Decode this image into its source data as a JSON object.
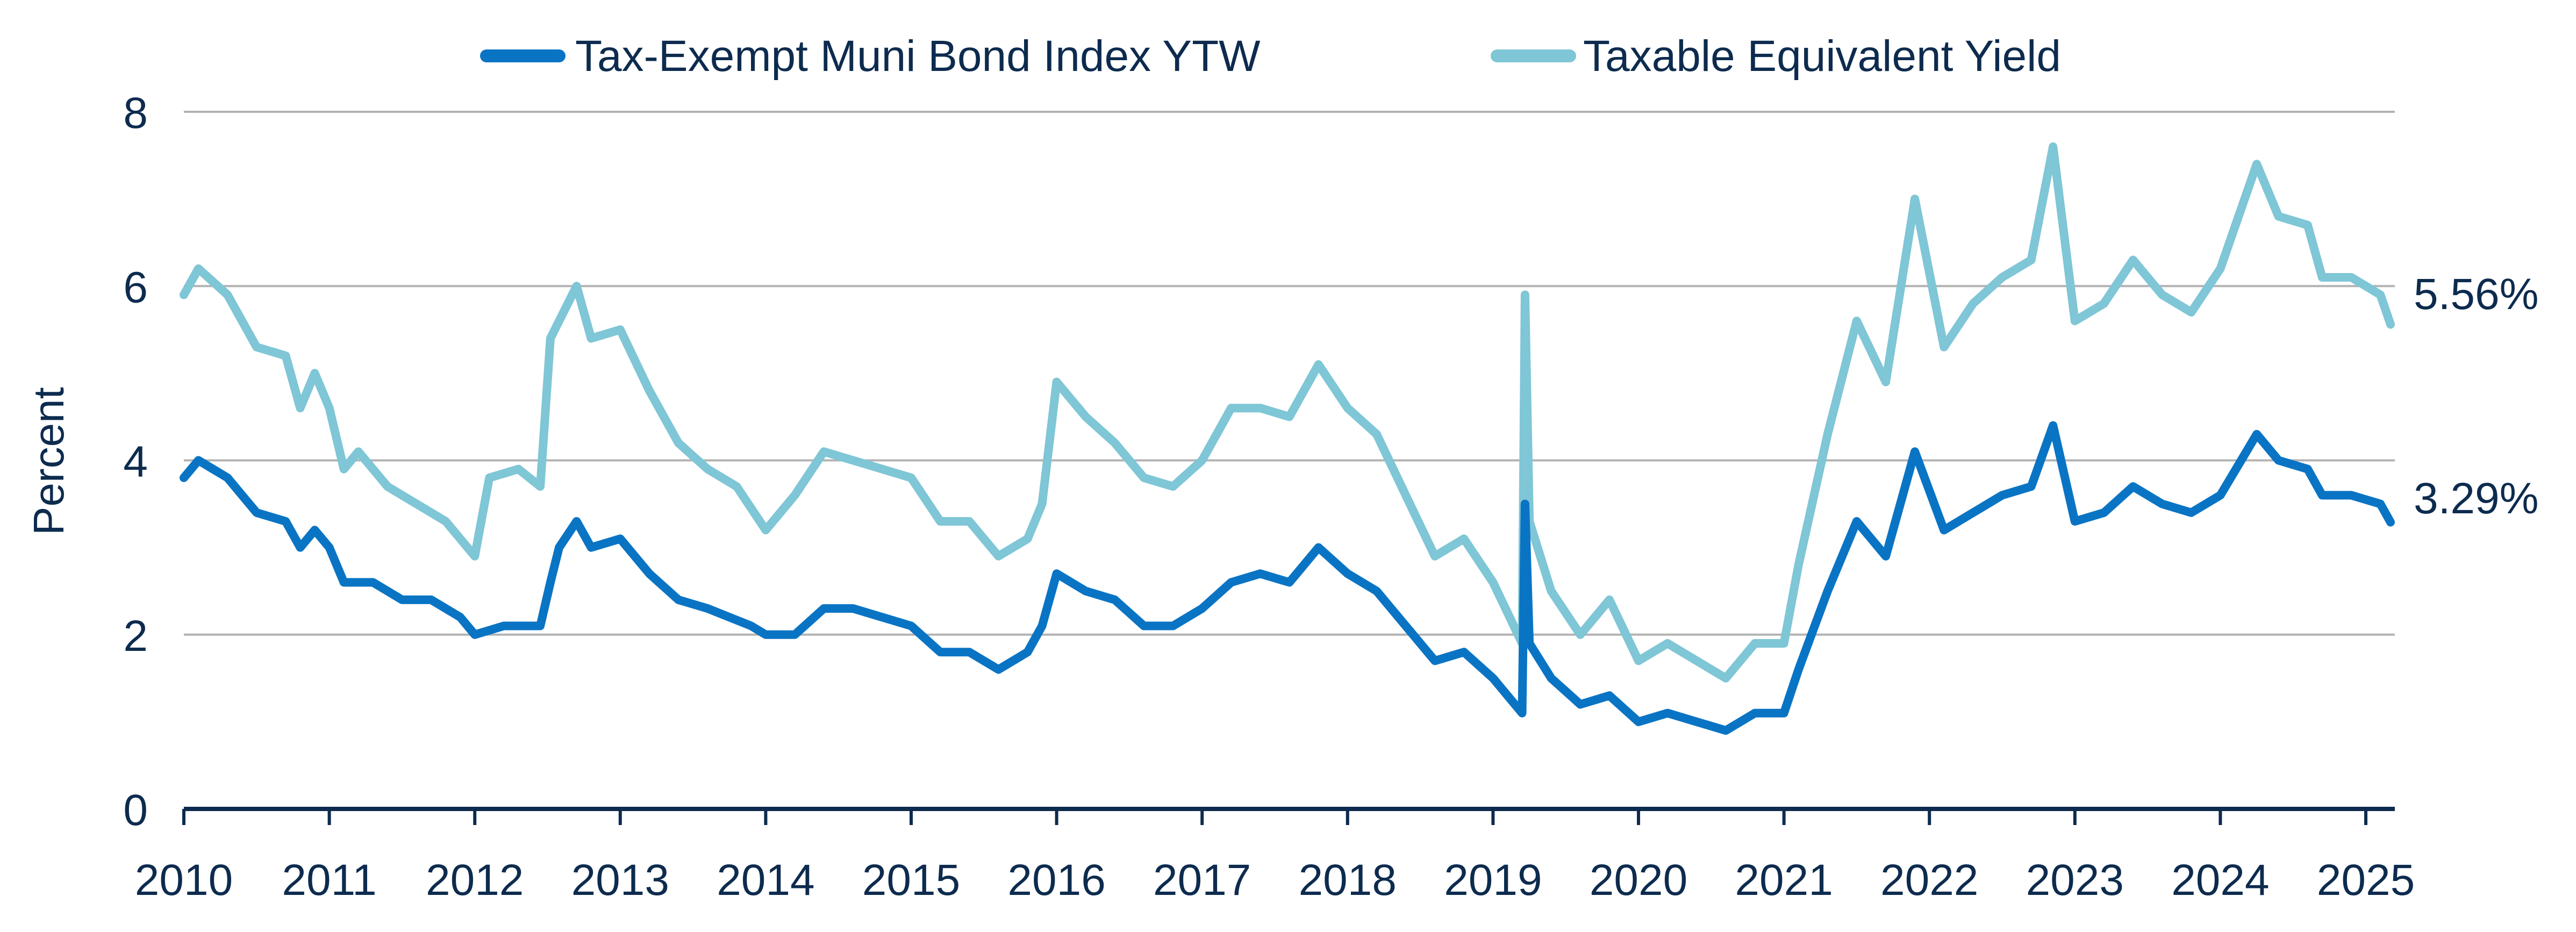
{
  "chart_data": {
    "type": "line",
    "title": "",
    "xlabel": "",
    "ylabel": "Percent",
    "xlim": [
      2010,
      2025.17
    ],
    "ylim": [
      0,
      8
    ],
    "yticks": [
      0,
      2,
      4,
      6,
      8
    ],
    "xticks": [
      "2010",
      "2011",
      "2012",
      "2013",
      "2014",
      "2015",
      "2016",
      "2017",
      "2018",
      "2019",
      "2020",
      "2021",
      "2022",
      "2023",
      "2024",
      "2025"
    ],
    "grid": true,
    "legend_position": "top",
    "end_labels": [
      "5.56%",
      "3.29%"
    ],
    "series": [
      {
        "name": "Tax-Exempt Muni Bond Index YTW",
        "color": "#0a74c4",
        "x": [
          2010.0,
          2010.1,
          2010.3,
          2010.5,
          2010.7,
          2010.8,
          2010.9,
          2011.0,
          2011.1,
          2011.3,
          2011.5,
          2011.7,
          2011.9,
          2012.0,
          2012.2,
          2012.4,
          2012.45,
          2012.52,
          2012.58,
          2012.7,
          2012.8,
          2013.0,
          2013.2,
          2013.4,
          2013.6,
          2013.9,
          2014.0,
          2014.2,
          2014.4,
          2014.6,
          2014.8,
          2015.0,
          2015.2,
          2015.4,
          2015.6,
          2015.8,
          2015.9,
          2016.0,
          2016.2,
          2016.4,
          2016.6,
          2016.8,
          2017.0,
          2017.2,
          2017.4,
          2017.6,
          2017.8,
          2018.0,
          2018.2,
          2018.4,
          2018.6,
          2018.8,
          2019.0,
          2019.2,
          2019.22,
          2019.25,
          2019.4,
          2019.6,
          2019.8,
          2020.0,
          2020.2,
          2020.4,
          2020.6,
          2020.8,
          2021.0,
          2021.1,
          2021.3,
          2021.5,
          2021.7,
          2021.9,
          2022.1,
          2022.3,
          2022.5,
          2022.7,
          2022.85,
          2023.0,
          2023.2,
          2023.4,
          2023.6,
          2023.8,
          2024.0,
          2024.25,
          2024.4,
          2024.6,
          2024.7,
          2024.9,
          2025.1,
          2025.17
        ],
        "y": [
          3.8,
          4.0,
          3.8,
          3.4,
          3.3,
          3.0,
          3.2,
          3.0,
          2.6,
          2.6,
          2.4,
          2.4,
          2.2,
          2.0,
          2.1,
          2.1,
          2.1,
          2.6,
          3.0,
          3.3,
          3.0,
          3.1,
          2.7,
          2.4,
          2.3,
          2.1,
          2.0,
          2.0,
          2.3,
          2.3,
          2.2,
          2.1,
          1.8,
          1.8,
          1.6,
          1.8,
          2.1,
          2.7,
          2.5,
          2.4,
          2.1,
          2.1,
          2.3,
          2.6,
          2.7,
          2.6,
          3.0,
          2.7,
          2.5,
          2.1,
          1.7,
          1.8,
          1.5,
          1.1,
          3.5,
          1.9,
          1.5,
          1.2,
          1.3,
          1.0,
          1.1,
          1.0,
          0.9,
          1.1,
          1.1,
          1.6,
          2.5,
          3.3,
          2.9,
          4.1,
          3.2,
          3.4,
          3.6,
          3.7,
          4.4,
          3.3,
          3.4,
          3.7,
          3.5,
          3.4,
          3.6,
          4.3,
          4.0,
          3.9,
          3.6,
          3.6,
          3.5,
          3.29
        ]
      },
      {
        "name": "Taxable Equivalent Yield",
        "color": "#7fc6d6",
        "x": [
          2010.0,
          2010.1,
          2010.3,
          2010.5,
          2010.7,
          2010.8,
          2010.9,
          2011.0,
          2011.1,
          2011.2,
          2011.4,
          2011.6,
          2011.8,
          2012.0,
          2012.1,
          2012.3,
          2012.45,
          2012.52,
          2012.7,
          2012.8,
          2013.0,
          2013.2,
          2013.4,
          2013.6,
          2013.8,
          2014.0,
          2014.2,
          2014.4,
          2014.6,
          2014.8,
          2015.0,
          2015.2,
          2015.4,
          2015.6,
          2015.8,
          2015.9,
          2016.0,
          2016.2,
          2016.4,
          2016.6,
          2016.8,
          2017.0,
          2017.2,
          2017.4,
          2017.6,
          2017.8,
          2018.0,
          2018.2,
          2018.4,
          2018.6,
          2018.8,
          2019.0,
          2019.2,
          2019.22,
          2019.25,
          2019.4,
          2019.6,
          2019.8,
          2020.0,
          2020.2,
          2020.4,
          2020.6,
          2020.8,
          2021.0,
          2021.1,
          2021.3,
          2021.5,
          2021.7,
          2021.9,
          2022.1,
          2022.3,
          2022.5,
          2022.7,
          2022.85,
          2023.0,
          2023.2,
          2023.4,
          2023.6,
          2023.8,
          2024.0,
          2024.25,
          2024.4,
          2024.6,
          2024.7,
          2024.9,
          2025.1,
          2025.17
        ],
        "y": [
          5.9,
          6.2,
          5.9,
          5.3,
          5.2,
          4.6,
          5.0,
          4.6,
          3.9,
          4.1,
          3.7,
          3.5,
          3.3,
          2.9,
          3.8,
          3.9,
          3.7,
          5.4,
          6.0,
          5.4,
          5.5,
          4.8,
          4.2,
          3.9,
          3.7,
          3.2,
          3.6,
          4.1,
          4.0,
          3.9,
          3.8,
          3.3,
          3.3,
          2.9,
          3.1,
          3.5,
          4.9,
          4.5,
          4.2,
          3.8,
          3.7,
          4.0,
          4.6,
          4.6,
          4.5,
          5.1,
          4.6,
          4.3,
          3.6,
          2.9,
          3.1,
          2.6,
          1.9,
          5.9,
          3.3,
          2.5,
          2.0,
          2.4,
          1.7,
          1.9,
          1.7,
          1.5,
          1.9,
          1.9,
          2.8,
          4.3,
          5.6,
          4.9,
          7.0,
          5.3,
          5.8,
          6.1,
          6.3,
          7.6,
          5.6,
          5.8,
          6.3,
          5.9,
          5.7,
          6.2,
          7.4,
          6.8,
          6.7,
          6.1,
          6.1,
          5.9,
          5.56
        ]
      }
    ]
  }
}
